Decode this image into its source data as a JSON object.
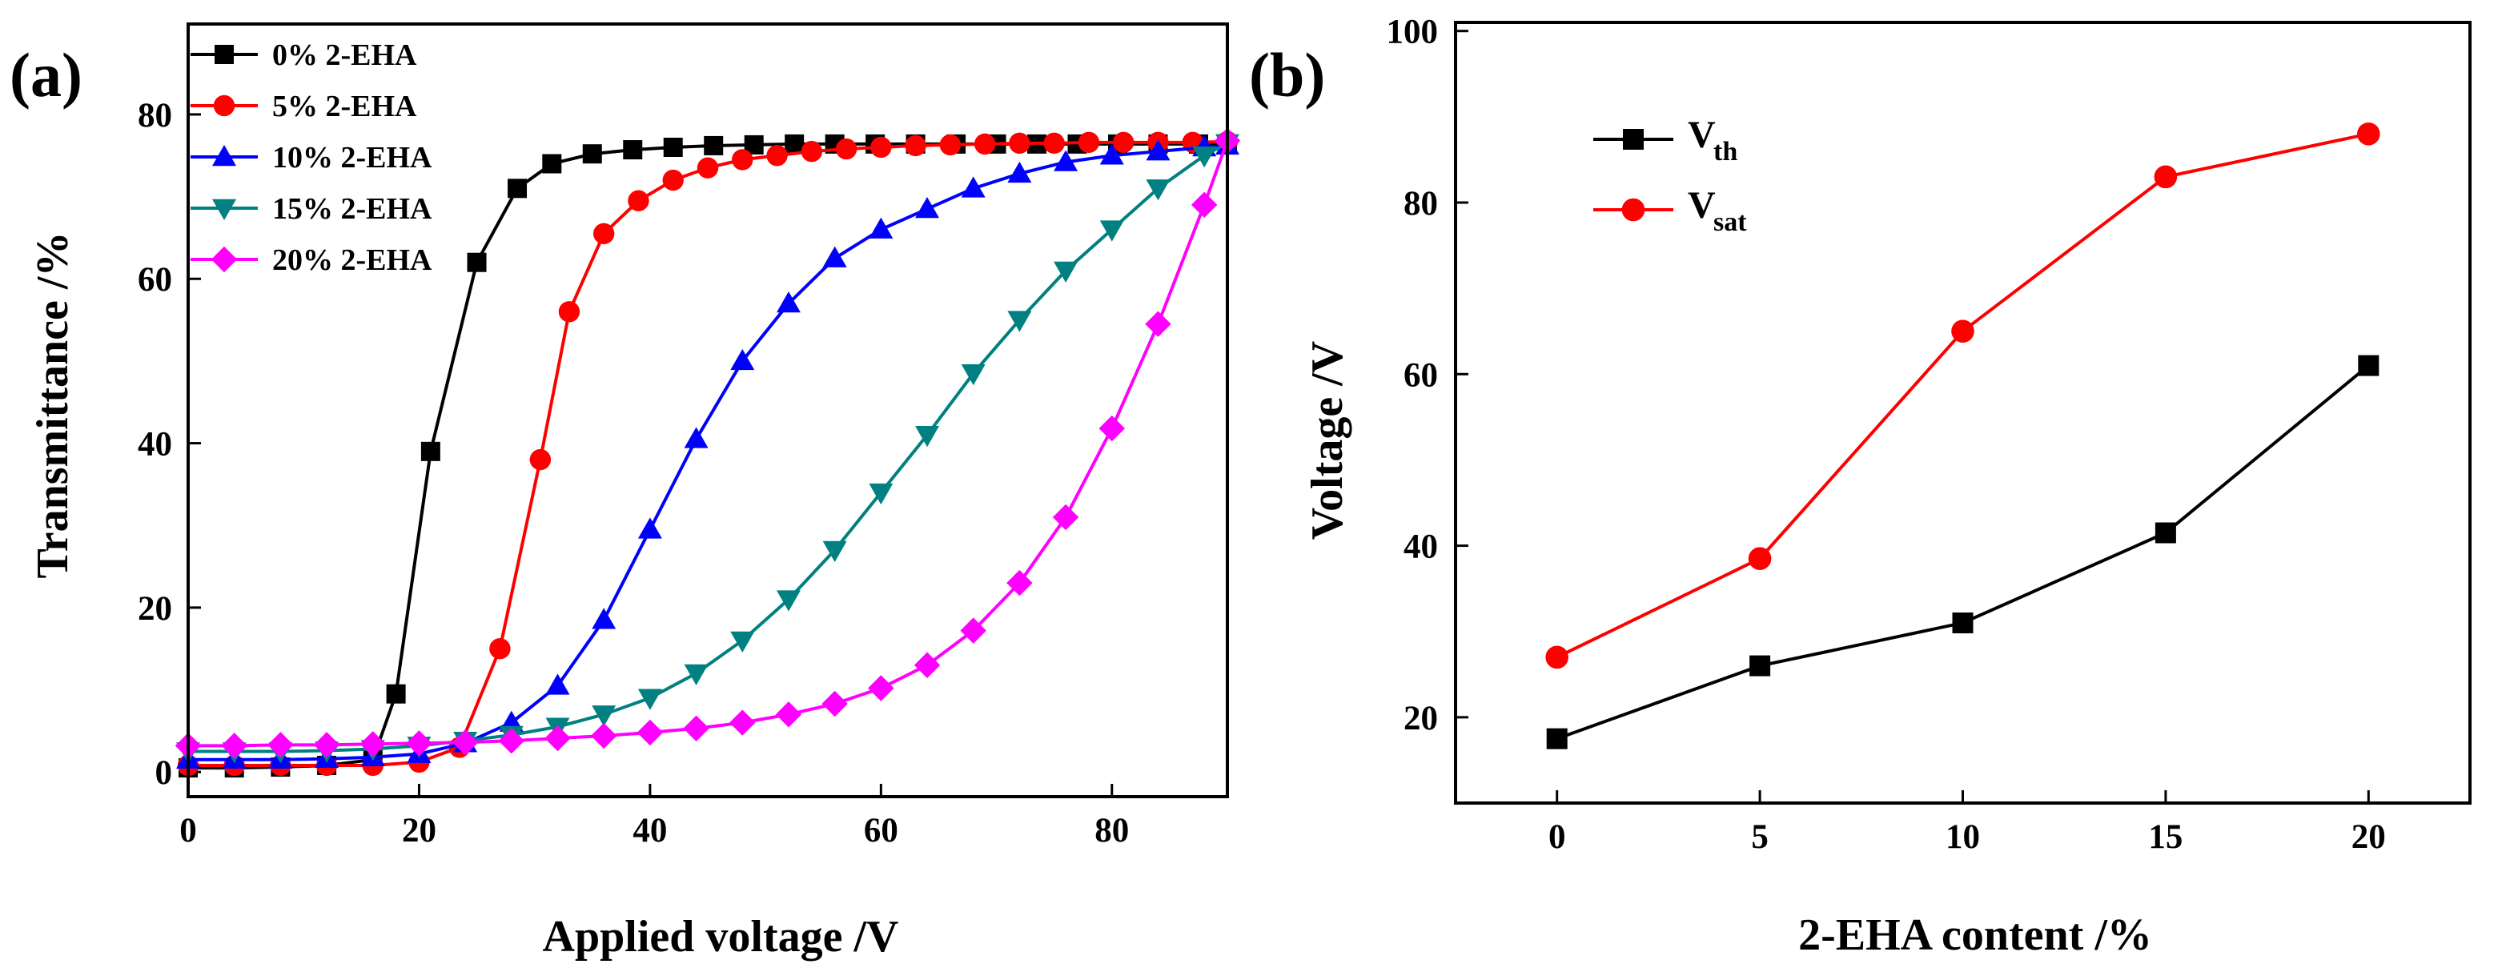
{
  "chart_data": [
    {
      "panel": "(a)",
      "type": "line",
      "title": "",
      "xlabel": "Applied voltage /V",
      "ylabel": "Transmittance /%",
      "xlim": [
        0,
        90
      ],
      "ylim": [
        -3,
        91
      ],
      "xticks": [
        0,
        20,
        40,
        60,
        80
      ],
      "yticks": [
        0,
        20,
        40,
        60,
        80
      ],
      "legend_position": "top-left",
      "series": [
        {
          "name": "0% 2-EHA",
          "color": "#000000",
          "marker": "square",
          "x": [
            0,
            4,
            8,
            12,
            16,
            18,
            21,
            25,
            28.5,
            31.5,
            35,
            38.5,
            42,
            45.5,
            49,
            52.5,
            56,
            59.5,
            63,
            66.5,
            70,
            73.5,
            77,
            80.5,
            84,
            87.5,
            90
          ],
          "y": [
            0.5,
            0.5,
            0.6,
            0.8,
            1.5,
            9.5,
            39,
            62,
            71,
            74,
            75.2,
            75.7,
            76,
            76.2,
            76.3,
            76.4,
            76.4,
            76.4,
            76.4,
            76.4,
            76.4,
            76.4,
            76.4,
            76.4,
            76.4,
            76.4,
            76.4
          ]
        },
        {
          "name": "5% 2-EHA",
          "color": "#ff0000",
          "marker": "circle",
          "x": [
            0,
            4,
            8,
            12,
            16,
            20,
            23.5,
            27,
            30.5,
            33,
            36,
            39,
            42,
            45,
            48,
            51,
            54,
            57,
            60,
            63,
            66,
            69,
            72,
            75,
            78,
            81,
            84,
            87,
            90
          ],
          "y": [
            0.8,
            0.8,
            0.8,
            0.8,
            0.8,
            1.2,
            3,
            15,
            38,
            56,
            65.5,
            69.5,
            72,
            73.5,
            74.5,
            75,
            75.5,
            75.8,
            76,
            76.2,
            76.3,
            76.4,
            76.5,
            76.5,
            76.6,
            76.6,
            76.6,
            76.6,
            76.7
          ]
        },
        {
          "name": "10% 2-EHA",
          "color": "#0000ff",
          "marker": "triangle-up",
          "x": [
            0,
            4,
            8,
            12,
            16,
            20,
            24,
            28,
            32,
            36,
            40,
            44,
            48,
            52,
            56,
            60,
            64,
            68,
            72,
            76,
            80,
            84,
            88,
            90
          ],
          "y": [
            1.5,
            1.5,
            1.5,
            1.6,
            1.8,
            2.2,
            3.5,
            6,
            10.5,
            18.5,
            29.5,
            40.5,
            50,
            57,
            62.5,
            66,
            68.5,
            71,
            72.8,
            74.2,
            75,
            75.5,
            76,
            76.2
          ]
        },
        {
          "name": "15% 2-EHA",
          "color": "#008080",
          "marker": "triangle-down",
          "x": [
            0,
            4,
            8,
            12,
            16,
            20,
            24,
            28,
            32,
            36,
            40,
            44,
            48,
            52,
            56,
            60,
            64,
            68,
            72,
            76,
            80,
            84,
            88,
            90
          ],
          "y": [
            2.5,
            2.5,
            2.5,
            2.6,
            2.8,
            3.2,
            3.8,
            4.5,
            5.5,
            7,
            9,
            12,
            16,
            21,
            27,
            34,
            41,
            48.5,
            55,
            61,
            66,
            71,
            75,
            76.5
          ]
        },
        {
          "name": "20% 2-EHA",
          "color": "#ff00ff",
          "marker": "diamond",
          "x": [
            0,
            4,
            8,
            12,
            16,
            20,
            24,
            28,
            32,
            36,
            40,
            44,
            48,
            52,
            56,
            60,
            64,
            68,
            72,
            76,
            80,
            84,
            88,
            90
          ],
          "y": [
            3.2,
            3.2,
            3.3,
            3.3,
            3.4,
            3.5,
            3.6,
            3.8,
            4.1,
            4.4,
            4.8,
            5.3,
            6,
            7,
            8.3,
            10.2,
            13,
            17.2,
            23,
            31,
            41.8,
            54.5,
            69,
            76.8
          ]
        }
      ]
    },
    {
      "panel": "(b)",
      "type": "line",
      "title": "",
      "xlabel": "2-EHA content /%",
      "ylabel": "Voltage /V",
      "xlim": [
        -2.5,
        22.5
      ],
      "ylim": [
        10,
        101
      ],
      "xticks": [
        0,
        5,
        10,
        15,
        20
      ],
      "yticks": [
        20,
        40,
        60,
        80,
        100
      ],
      "legend_position": "top-left",
      "categories": [
        0,
        5,
        10,
        15,
        20
      ],
      "series": [
        {
          "name": "V",
          "subscript": "th",
          "color": "#000000",
          "marker": "square",
          "values": [
            17.5,
            26,
            31,
            41.5,
            61
          ]
        },
        {
          "name": "V",
          "subscript": "sat",
          "color": "#ff0000",
          "marker": "circle",
          "values": [
            27,
            38.5,
            65,
            83,
            88
          ]
        }
      ]
    }
  ]
}
